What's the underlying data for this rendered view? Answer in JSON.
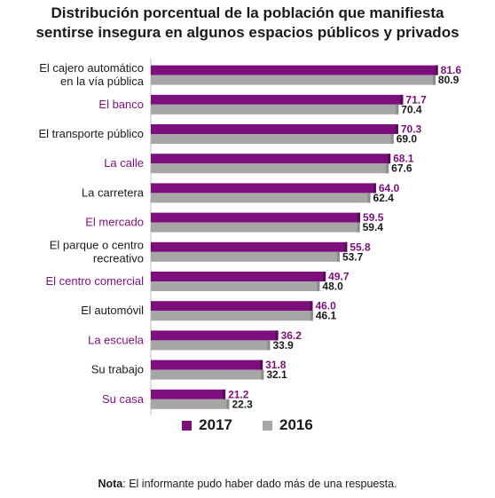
{
  "chart_data": {
    "type": "bar",
    "orientation": "horizontal",
    "title_lines": [
      "Distribución porcentual de la población que manifiesta",
      "sentirse insegura en algunos espacios públicos y privados"
    ],
    "categories": [
      [
        "El cajero automático",
        "en la vía pública"
      ],
      [
        "El banco"
      ],
      [
        "El transporte público"
      ],
      [
        "La calle"
      ],
      [
        "La carretera"
      ],
      [
        "El mercado"
      ],
      [
        "El parque o centro",
        "recreativo"
      ],
      [
        "El centro comercial"
      ],
      [
        "El automóvil"
      ],
      [
        "La escuela"
      ],
      [
        "Su trabajo"
      ],
      [
        "Su casa"
      ]
    ],
    "category_label_colors": [
      "#1a1a1a",
      "#7d0f7d",
      "#1a1a1a",
      "#7d0f7d",
      "#1a1a1a",
      "#7d0f7d",
      "#1a1a1a",
      "#7d0f7d",
      "#1a1a1a",
      "#7d0f7d",
      "#1a1a1a",
      "#7d0f7d"
    ],
    "series": [
      {
        "name": "2017",
        "color": "#7d0f7d",
        "label_color": "#7d0f7d",
        "values": [
          81.6,
          71.7,
          70.3,
          68.1,
          64.0,
          59.5,
          55.8,
          49.7,
          46.0,
          36.2,
          31.8,
          21.2
        ]
      },
      {
        "name": "2016",
        "color": "#a6a6a6",
        "label_color": "#1a1a1a",
        "values": [
          80.9,
          70.4,
          69.0,
          67.6,
          62.4,
          59.4,
          53.7,
          48.0,
          46.1,
          33.9,
          32.1,
          22.3
        ]
      }
    ],
    "value_labels": {
      "2017": [
        "81.6",
        "71.7",
        "70.3",
        "68.1",
        "64.0",
        "59.5",
        "55.8",
        "49.7",
        "46.0",
        "36.2",
        "31.8",
        "21.2"
      ],
      "2016": [
        "80.9",
        "70.4",
        "69.0",
        "67.6",
        "62.4",
        "59.4",
        "53.7",
        "48.0",
        "46.1",
        "33.9",
        "32.1",
        "22.3"
      ]
    },
    "xlim": [
      0,
      90
    ],
    "grid": false,
    "legend_position": "bottom"
  },
  "note": {
    "label": "Nota",
    "text": ": El informante pudo haber dado más de una respuesta."
  }
}
